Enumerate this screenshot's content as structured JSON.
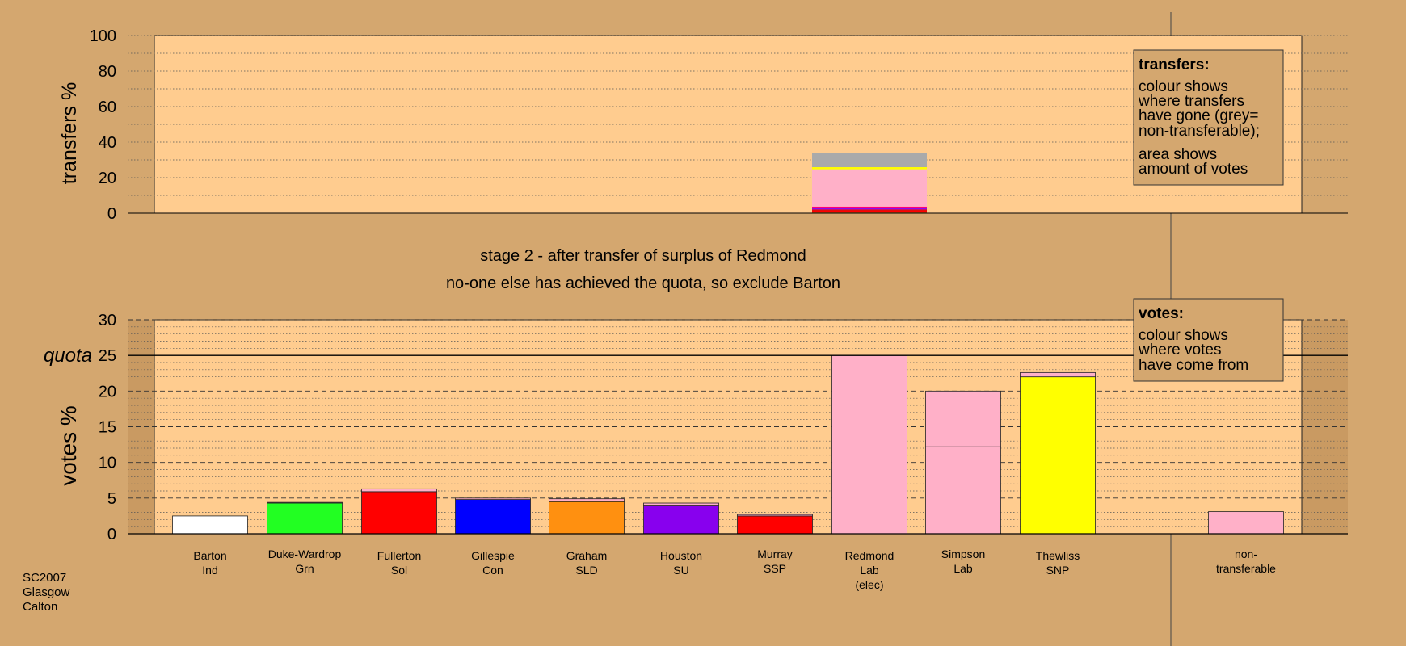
{
  "chart_data": [
    {
      "type": "bar",
      "panel": "transfers",
      "ylabel": "transfers %",
      "ylim": [
        0,
        100
      ],
      "yticks": [
        0,
        20,
        40,
        60,
        80,
        100
      ],
      "stack_segments": [
        {
          "label": "Thewliss",
          "value": 0.8,
          "color": "#c8531a"
        },
        {
          "label": "Murray",
          "value": 0.6,
          "color": "#ff0000"
        },
        {
          "label": "Fullerton",
          "value": 0.7,
          "color": "#e00000"
        },
        {
          "label": "Houston",
          "value": 0.6,
          "color": "#8b00ff"
        },
        {
          "label": "Gillespie",
          "value": 0.4,
          "color": "#1a1a6e"
        },
        {
          "label": "Graham",
          "value": 0.6,
          "color": "#ff0077"
        },
        {
          "label": "Simpson",
          "value": 21.0,
          "color": "#ffb0c8"
        },
        {
          "label": "Thewliss",
          "value": 1.2,
          "color": "#ffff00"
        },
        {
          "label": "non-transferable",
          "value": 8.0,
          "color": "#aaaaaa"
        }
      ],
      "legend": {
        "title": "transfers:",
        "line1": "colour shows",
        "line2": "where transfers",
        "line3": "have gone (grey=",
        "line4": "non-transferable);",
        "line5": "area shows",
        "line6": "amount of votes"
      }
    },
    {
      "type": "bar",
      "panel": "votes",
      "ylabel": "votes %",
      "ylim": [
        0,
        30
      ],
      "yticks": [
        0,
        5,
        10,
        15,
        20,
        25,
        30
      ],
      "quota": 25,
      "quota_label": "quota",
      "candidates": [
        {
          "name": "Barton",
          "party": "Ind",
          "extra": "",
          "segments": [
            {
              "value": 2.5,
              "color": "#ffffff"
            }
          ]
        },
        {
          "name": "Duke-Wardrop",
          "party": "Grn",
          "extra": "",
          "segments": [
            {
              "value": 4.3,
              "color": "#22ff22"
            },
            {
              "value": 0.1,
              "color": "#ffb0c8"
            }
          ]
        },
        {
          "name": "Fullerton",
          "party": "Sol",
          "extra": "",
          "segments": [
            {
              "value": 5.9,
              "color": "#ff0000"
            },
            {
              "value": 0.4,
              "color": "#ffb0c8"
            }
          ]
        },
        {
          "name": "Gillespie",
          "party": "Con",
          "extra": "",
          "segments": [
            {
              "value": 4.8,
              "color": "#0000ff"
            },
            {
              "value": 0.2,
              "color": "#ffb0c8"
            }
          ]
        },
        {
          "name": "Graham",
          "party": "SLD",
          "extra": "",
          "segments": [
            {
              "value": 4.5,
              "color": "#ff9010"
            },
            {
              "value": 0.4,
              "color": "#ffb0c8"
            }
          ]
        },
        {
          "name": "Houston",
          "party": "SU",
          "extra": "",
          "segments": [
            {
              "value": 3.9,
              "color": "#8800ee"
            },
            {
              "value": 0.4,
              "color": "#ffb0c8"
            }
          ]
        },
        {
          "name": "Murray",
          "party": "SSP",
          "extra": "",
          "segments": [
            {
              "value": 2.5,
              "color": "#ff0000"
            },
            {
              "value": 0.2,
              "color": "#ffb0c8"
            }
          ]
        },
        {
          "name": "Redmond",
          "party": "Lab",
          "extra": "(elec)",
          "segments": [
            {
              "value": 25.0,
              "color": "#ffb0c8"
            }
          ]
        },
        {
          "name": "Simpson",
          "party": "Lab",
          "extra": "",
          "segments": [
            {
              "value": 12.2,
              "color": "#ffb0c8"
            },
            {
              "value": 7.8,
              "color": "#ffb0c8"
            }
          ]
        },
        {
          "name": "Thewliss",
          "party": "SNP",
          "extra": "",
          "segments": [
            {
              "value": 22.0,
              "color": "#ffff00"
            },
            {
              "value": 0.6,
              "color": "#ffb0c8"
            }
          ]
        }
      ],
      "nontransferable": {
        "name": "non-",
        "party": "transferable",
        "extra": "",
        "segments": [
          {
            "value": 3.1,
            "color": "#ffb0c8"
          }
        ]
      },
      "legend": {
        "title": "votes:",
        "line1": "colour shows",
        "line2": "where votes",
        "line3": "have come from"
      }
    }
  ],
  "stage": {
    "line1": "stage 2 - after transfer of surplus of Redmond",
    "line2": "no-one else has achieved the quota, so exclude Barton"
  },
  "footer": {
    "line1": "SC2007",
    "line2": "Glasgow",
    "line3": "Calton"
  },
  "colors": {
    "background": "#d4a76f",
    "plot": "#ffcc8f",
    "band": "#c99a62"
  }
}
